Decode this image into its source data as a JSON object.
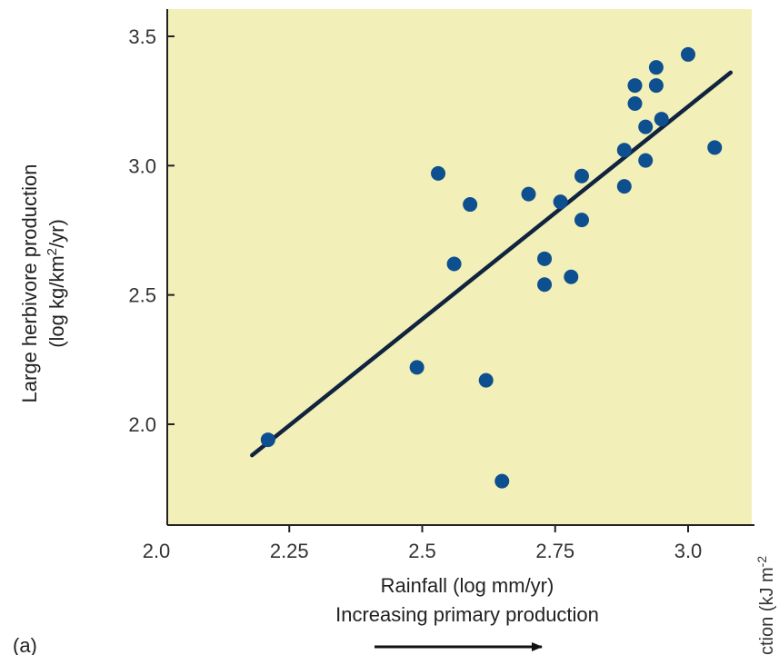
{
  "colors": {
    "plot_background": "#f2efb8",
    "marker": "#0d4f8f",
    "fit_line": "#10233f",
    "axis": "#222222"
  },
  "panel_label": "(a)",
  "arrow_caption": "Increasing primary production",
  "edge_fragment": "ction (kJ m",
  "edge_fragment_sup": "-2",
  "chart_data": {
    "type": "scatter",
    "xlabel": "Rainfall (log mm/yr)",
    "ylabel_line1": "Large herbivore production",
    "ylabel_line2_pre": "(log kg/km",
    "ylabel_line2_sup": "2",
    "ylabel_line2_post": "/yr)",
    "xlim": [
      2.0,
      3.1
    ],
    "ylim": [
      1.72,
      3.55
    ],
    "x_ticks": [
      2.0,
      2.25,
      2.5,
      2.75,
      3.0
    ],
    "x_tick_labels": [
      "2.0",
      "2.25",
      "2.5",
      "2.75",
      "3.0"
    ],
    "y_ticks": [
      2.0,
      2.5,
      3.0,
      3.5
    ],
    "y_tick_labels": [
      "2.0",
      "2.5",
      "3.0",
      "3.5"
    ],
    "points": [
      {
        "x": 2.21,
        "y": 1.94
      },
      {
        "x": 2.49,
        "y": 2.22
      },
      {
        "x": 2.53,
        "y": 2.97
      },
      {
        "x": 2.56,
        "y": 2.62
      },
      {
        "x": 2.59,
        "y": 2.85
      },
      {
        "x": 2.62,
        "y": 2.17
      },
      {
        "x": 2.65,
        "y": 1.78
      },
      {
        "x": 2.7,
        "y": 2.89
      },
      {
        "x": 2.73,
        "y": 2.64
      },
      {
        "x": 2.73,
        "y": 2.54
      },
      {
        "x": 2.76,
        "y": 2.86
      },
      {
        "x": 2.78,
        "y": 2.57
      },
      {
        "x": 2.8,
        "y": 2.79
      },
      {
        "x": 2.8,
        "y": 2.96
      },
      {
        "x": 2.88,
        "y": 3.06
      },
      {
        "x": 2.88,
        "y": 2.92
      },
      {
        "x": 2.9,
        "y": 3.24
      },
      {
        "x": 2.9,
        "y": 3.31
      },
      {
        "x": 2.92,
        "y": 3.15
      },
      {
        "x": 2.92,
        "y": 3.02
      },
      {
        "x": 2.94,
        "y": 3.31
      },
      {
        "x": 2.94,
        "y": 3.38
      },
      {
        "x": 2.95,
        "y": 3.18
      },
      {
        "x": 3.0,
        "y": 3.43
      },
      {
        "x": 3.05,
        "y": 3.07
      }
    ],
    "fit_line": {
      "x": [
        2.18,
        3.08
      ],
      "y": [
        1.88,
        3.36
      ]
    },
    "grid": false,
    "legend": "none"
  }
}
